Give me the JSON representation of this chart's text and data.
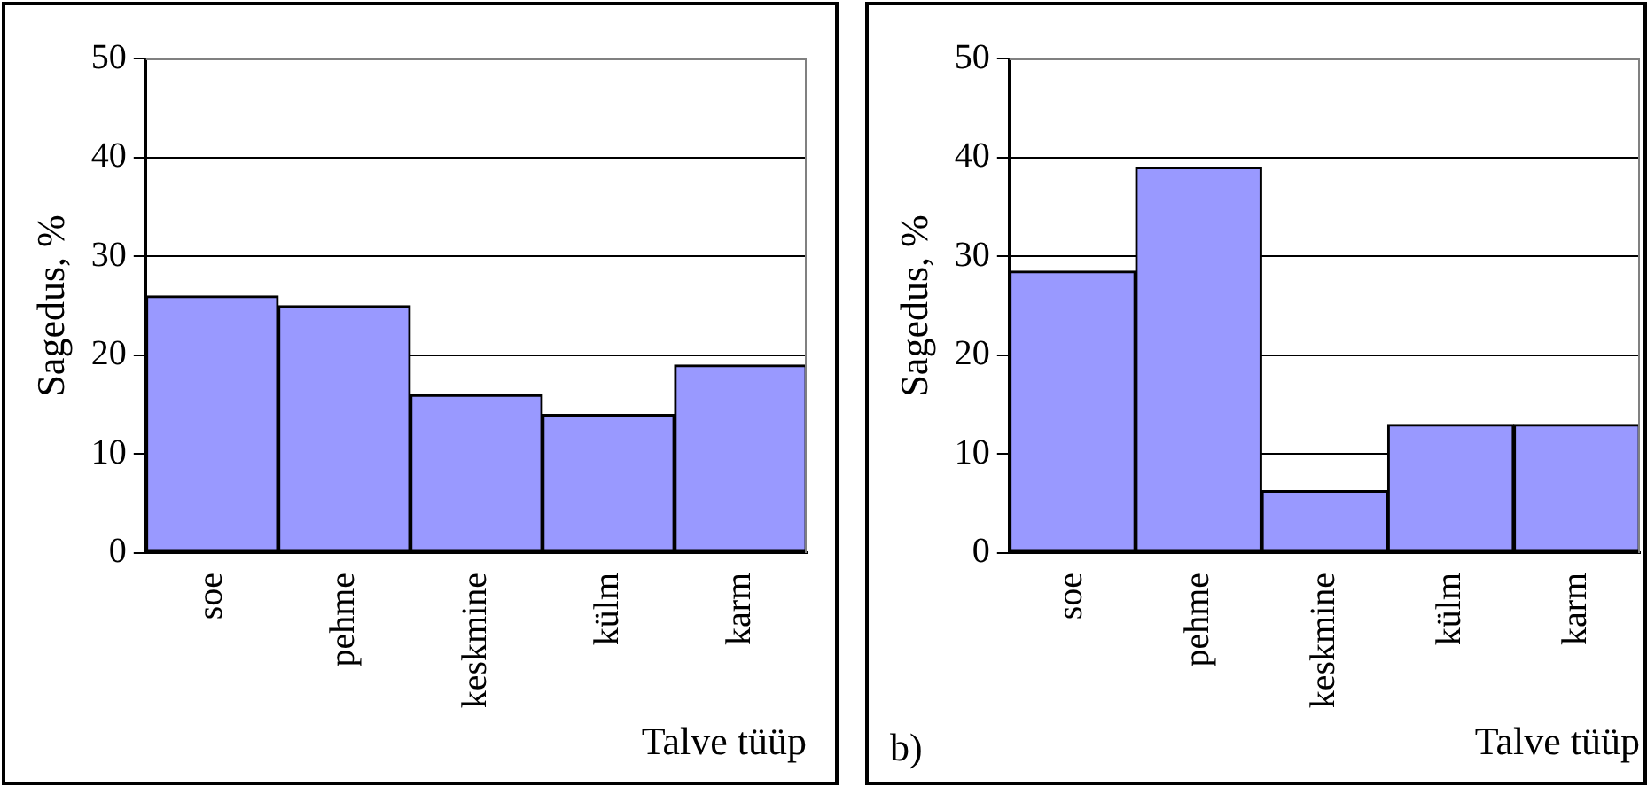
{
  "chart_data": [
    {
      "type": "bar",
      "xlabel": "Talve tüüp",
      "ylabel": "Sagedus, %",
      "categories": [
        "soe",
        "pehme",
        "keskmine",
        "külm",
        "karm"
      ],
      "values": [
        26,
        25,
        16,
        14,
        19
      ],
      "color": "#9999ff",
      "ylim": [
        0,
        50
      ],
      "yticks": [
        0,
        10,
        20,
        30,
        40,
        50
      ],
      "grid": "y"
    },
    {
      "type": "bar",
      "xlabel": "Talve tüüp",
      "ylabel": "Sagedus, %",
      "annotations": [
        "b)"
      ],
      "categories": [
        "soe",
        "pehme",
        "keskmine",
        "külm",
        "karm"
      ],
      "values": [
        28.5,
        39,
        6.3,
        13,
        13
      ],
      "color": "#9999ff",
      "ylim": [
        0,
        50
      ],
      "yticks": [
        0,
        10,
        20,
        30,
        40,
        50
      ],
      "grid": "y"
    }
  ]
}
